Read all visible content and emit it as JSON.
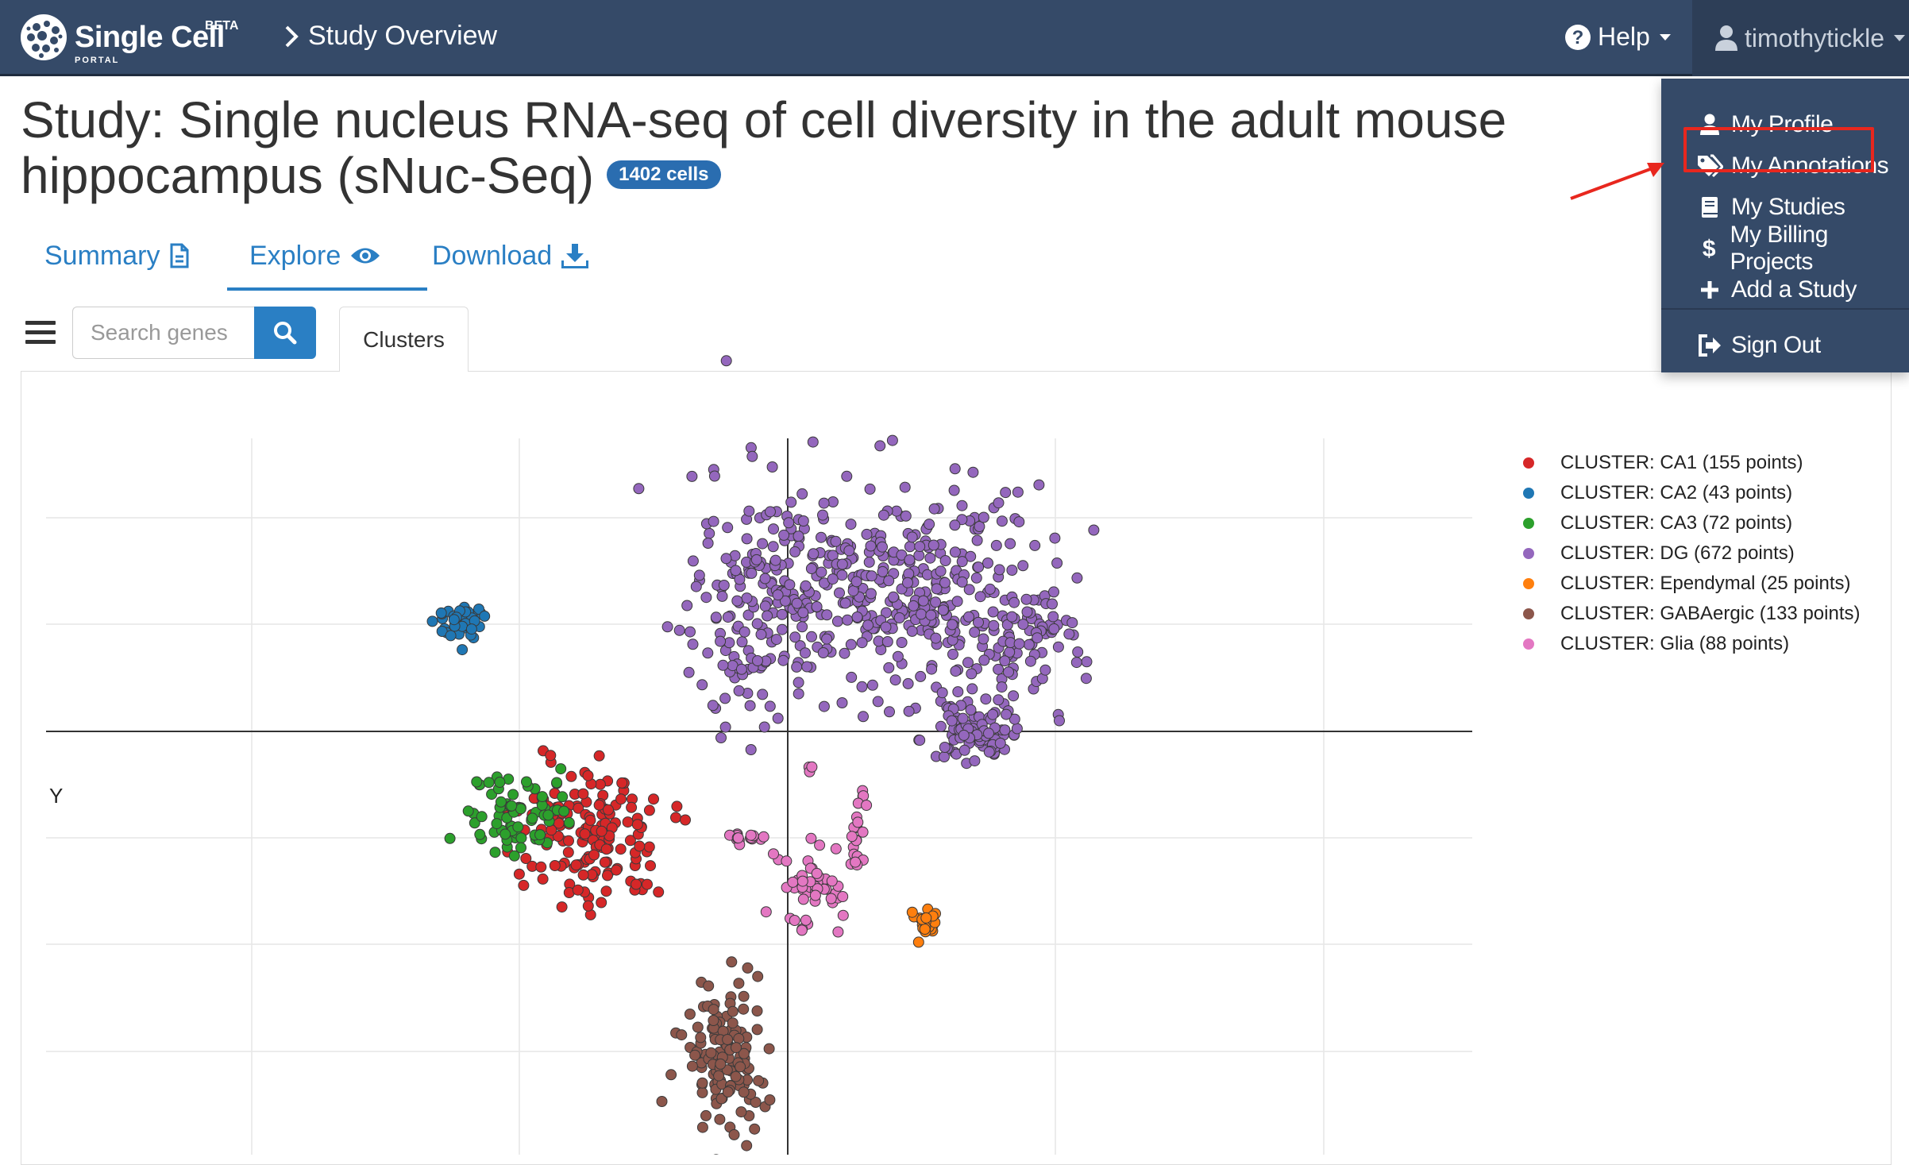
{
  "navbar": {
    "brand": "Single Cell",
    "brand_sub": "PORTAL",
    "brand_badge": "BETA",
    "breadcrumb": "Study Overview",
    "help_label": "Help",
    "username": "timothytickle"
  },
  "user_menu": {
    "items": [
      {
        "label": "My Profile",
        "icon": "user-icon"
      },
      {
        "label": "My Annotations",
        "icon": "tags-icon"
      },
      {
        "label": "My Studies",
        "icon": "book-icon"
      },
      {
        "label": "My Billing Projects",
        "icon": "dollar-icon"
      },
      {
        "label": "Add a Study",
        "icon": "plus-icon"
      }
    ],
    "sign_out": {
      "label": "Sign Out",
      "icon": "sign-out-icon"
    }
  },
  "annotation": {
    "highlight_color": "#e8271e",
    "highlighted_item": "My Annotations"
  },
  "study": {
    "title": "Study: Single nucleus RNA-seq of cell diversity in the adult mouse hippocampus (sNuc-Seq)",
    "cell_count": "1402 cells"
  },
  "tabs": [
    {
      "label": "Summary",
      "icon": "file-icon",
      "active": false
    },
    {
      "label": "Explore",
      "icon": "eye-icon",
      "active": true
    },
    {
      "label": "Download",
      "icon": "download-icon",
      "active": false
    }
  ],
  "toolbar": {
    "search_placeholder": "Search genes",
    "search_icon": "search-icon",
    "clusters_tab": "Clusters"
  },
  "colors": {
    "navbar": "#354a68",
    "accent": "#2a7fc4",
    "badge": "#2a6db0"
  },
  "chart_data": {
    "type": "scatter",
    "title": "",
    "xlabel": "",
    "ylabel": "Y",
    "grid": true,
    "legend_position": "right",
    "series": [
      {
        "name": "CLUSTER: CA1 (155 points)",
        "color": "#d62728",
        "count": 155
      },
      {
        "name": "CLUSTER: CA2 (43 points)",
        "color": "#1f77b4",
        "count": 43
      },
      {
        "name": "CLUSTER: CA3 (72 points)",
        "color": "#2ca02c",
        "count": 72
      },
      {
        "name": "CLUSTER: DG (672 points)",
        "color": "#9467bd",
        "count": 672
      },
      {
        "name": "CLUSTER: Ependymal (25 points)",
        "color": "#ff7f0e",
        "count": 25
      },
      {
        "name": "CLUSTER: GABAergic (133 points)",
        "color": "#8c564b",
        "count": 133
      },
      {
        "name": "CLUSTER: Glia (88 points)",
        "color": "#e377c2",
        "count": 88
      }
    ]
  }
}
